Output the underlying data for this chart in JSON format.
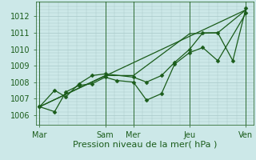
{
  "background_color": "#cce8e8",
  "grid_color": "#a8c8c8",
  "line_color": "#1a5c1a",
  "marker_color": "#1a5c1a",
  "ylabel_ticks": [
    1006,
    1007,
    1008,
    1009,
    1010,
    1011,
    1012
  ],
  "ylim": [
    1005.4,
    1012.9
  ],
  "xlabel": "Pression niveau de la mer( hPa )",
  "xtick_labels": [
    "Mar",
    "Sam",
    "Mer",
    "Jeu",
    "Ven"
  ],
  "xtick_positions": [
    0,
    35,
    50,
    80,
    110
  ],
  "vline_positions": [
    0,
    35,
    50,
    80,
    110
  ],
  "xlim": [
    -2,
    114
  ],
  "series": [
    {
      "x": [
        0,
        8,
        14,
        21,
        28,
        35,
        41,
        50,
        57,
        65,
        72,
        80,
        87,
        95,
        110
      ],
      "y": [
        1006.5,
        1006.2,
        1007.4,
        1007.8,
        1007.9,
        1008.3,
        1008.1,
        1008.0,
        1006.9,
        1007.3,
        1009.1,
        1009.8,
        1010.1,
        1009.3,
        1012.2
      ]
    },
    {
      "x": [
        0,
        8,
        14,
        21,
        28,
        35,
        50,
        57,
        65,
        72,
        80,
        87,
        95,
        103,
        110
      ],
      "y": [
        1006.5,
        1007.5,
        1007.1,
        1007.9,
        1008.4,
        1008.5,
        1008.3,
        1008.0,
        1008.4,
        1009.2,
        1010.0,
        1011.0,
        1011.0,
        1009.3,
        1012.5
      ]
    },
    {
      "x": [
        0,
        110
      ],
      "y": [
        1006.5,
        1012.4
      ]
    },
    {
      "x": [
        0,
        35,
        50,
        80,
        95,
        110
      ],
      "y": [
        1006.5,
        1008.4,
        1008.4,
        1010.95,
        1011.0,
        1012.4
      ]
    }
  ],
  "title_fontsize": 8,
  "tick_fontsize": 7,
  "marker_size": 2.5,
  "lw": 0.9
}
